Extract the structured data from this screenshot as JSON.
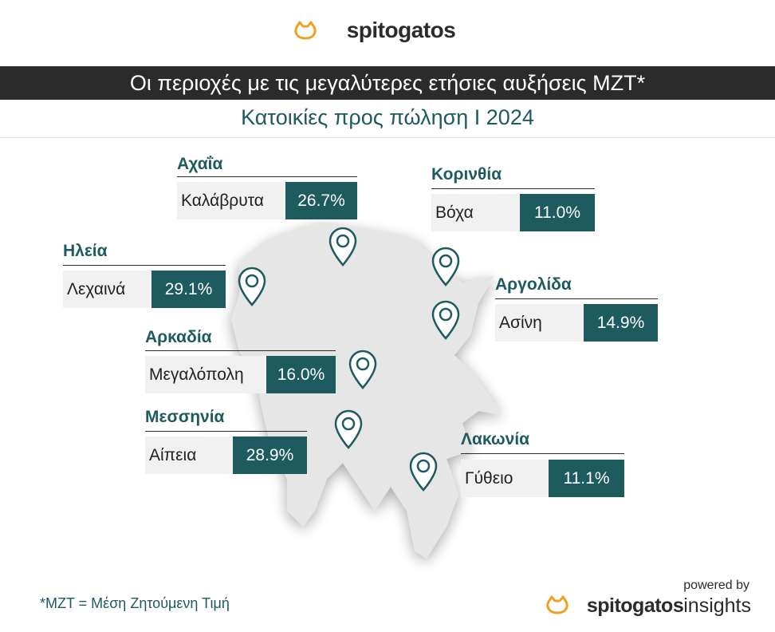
{
  "header": {
    "brand": "spitogatos",
    "title": "Οι περιοχές με τις μεγαλύτερες ετήσιες αυξήσεις ΜΖΤ*",
    "subtitle": "Κατοικίες προς πώληση I 2024"
  },
  "regions": [
    {
      "region": "Αχαΐα",
      "town": "Καλάβρυτα",
      "change": "26.7%"
    },
    {
      "region": "Κορινθία",
      "town": "Βόχα",
      "change": "11.0%"
    },
    {
      "region": "Ηλεία",
      "town": "Λεχαινά",
      "change": "29.1%"
    },
    {
      "region": "Αργολίδα",
      "town": "Ασίνη",
      "change": "14.9%"
    },
    {
      "region": "Αρκαδία",
      "town": "Μεγαλόπολη",
      "change": "16.0%"
    },
    {
      "region": "Μεσσηνία",
      "town": "Αίπεια",
      "change": "28.9%"
    },
    {
      "region": "Λακωνία",
      "town": "Γύθειο",
      "change": "11.1%"
    }
  ],
  "footer": {
    "note": "*ΜΖΤ = Μέση Ζητούμενη Τιμή",
    "powered": "powered by",
    "brand": "spitogatos",
    "product": "insights"
  }
}
